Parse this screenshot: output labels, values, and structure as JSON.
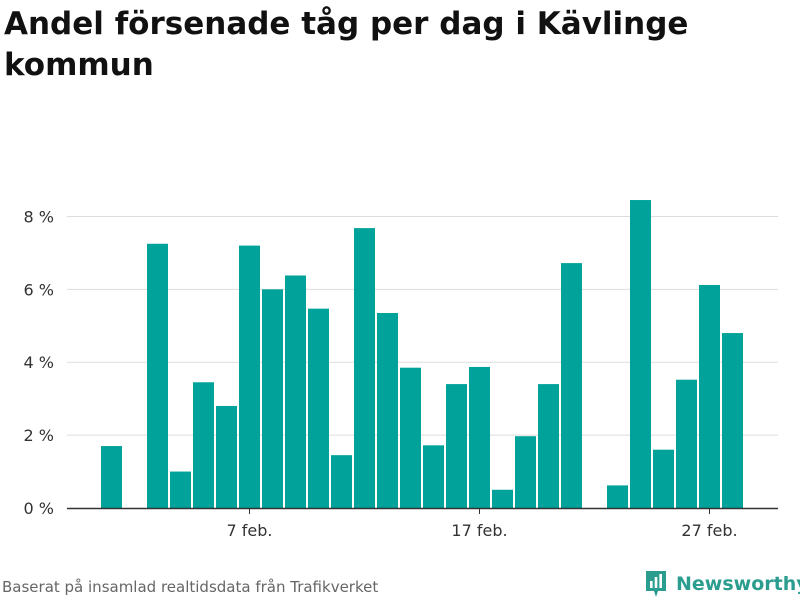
{
  "page": {
    "title": "Andel försenade tåg per dag i Kävlinge kommun",
    "source": "Baserat på insamlad realtidsdata från Trafikverket",
    "brand": "Newsworthy",
    "brand_icon": "newsworthy-logo-icon",
    "accent_color": "#00a29a",
    "brand_color": "#2a9d8f"
  },
  "chart_data": {
    "type": "bar",
    "title": "Andel försenade tåg per dag i Kävlinge kommun",
    "xlabel": "",
    "ylabel": "",
    "grid": true,
    "x_type": "date",
    "ylim": [
      0,
      9
    ],
    "yticks": [
      0,
      2,
      4,
      6,
      8
    ],
    "ytick_labels": [
      "0 %",
      "2 %",
      "4 %",
      "6 %",
      "8 %"
    ],
    "xticks": [
      "2024-02-07",
      "2024-02-17",
      "2024-02-27"
    ],
    "xtick_labels": [
      "7 feb.",
      "17 feb.",
      "27 feb."
    ],
    "categories": [
      "2024-02-01",
      "2024-02-02",
      "2024-02-03",
      "2024-02-04",
      "2024-02-05",
      "2024-02-06",
      "2024-02-07",
      "2024-02-08",
      "2024-02-09",
      "2024-02-10",
      "2024-02-11",
      "2024-02-12",
      "2024-02-13",
      "2024-02-14",
      "2024-02-15",
      "2024-02-16",
      "2024-02-17",
      "2024-02-18",
      "2024-02-19",
      "2024-02-20",
      "2024-02-21",
      "2024-02-22",
      "2024-02-23",
      "2024-02-24",
      "2024-02-25",
      "2024-02-26",
      "2024-02-27",
      "2024-02-28"
    ],
    "values": [
      1.7,
      null,
      7.25,
      1.0,
      3.45,
      2.8,
      7.2,
      6.0,
      6.38,
      5.47,
      1.45,
      7.68,
      5.35,
      3.85,
      1.72,
      3.4,
      3.87,
      0.5,
      1.97,
      3.4,
      6.72,
      null,
      0.62,
      8.45,
      1.6,
      3.52,
      6.12,
      4.8
    ],
    "color": "#00a29a"
  }
}
